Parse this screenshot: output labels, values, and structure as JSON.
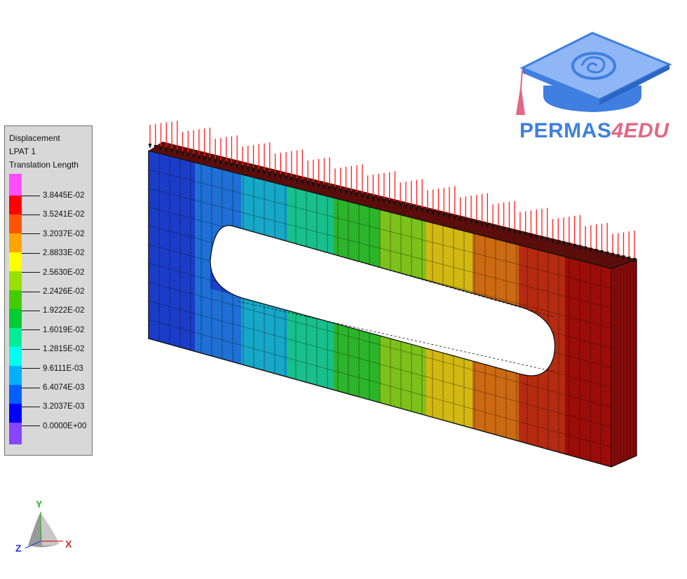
{
  "legend": {
    "title": "Displacement",
    "load_pattern": "LPAT 1",
    "quantity": "Translation Length",
    "colors": [
      "#ff4dff",
      "#ff0000",
      "#ff5500",
      "#ffa500",
      "#ffff00",
      "#99e000",
      "#44cc00",
      "#00cc33",
      "#00ee99",
      "#00ffee",
      "#00b0ff",
      "#0060ff",
      "#0000ff",
      "#8844ff"
    ],
    "ticks": [
      "3.8445E-02",
      "3.5241E-02",
      "3.2037E-02",
      "2.8833E-02",
      "2.5630E-02",
      "2.2426E-02",
      "1.9222E-02",
      "1.6019E-02",
      "1.2815E-02",
      "9.6111E-03",
      "6.4074E-03",
      "3.2037E-03",
      "0.0000E+00"
    ]
  },
  "logo": {
    "text_main": "PERMAS",
    "text_accent": "4EDU",
    "colors": {
      "blue": "#3f7fe0",
      "pink": "#e16883"
    }
  },
  "triad": {
    "y_label": "Y",
    "z_label": "Z",
    "x_label": "X"
  },
  "model": {
    "contour_colors": [
      "#1a3cc8",
      "#1e6fd6",
      "#17a7c8",
      "#17c08a",
      "#2cb52a",
      "#7cc21a",
      "#d2b812",
      "#cc6a12",
      "#b52a10",
      "#9c0c08"
    ],
    "load_arrow_color": "#ff1a1a"
  }
}
